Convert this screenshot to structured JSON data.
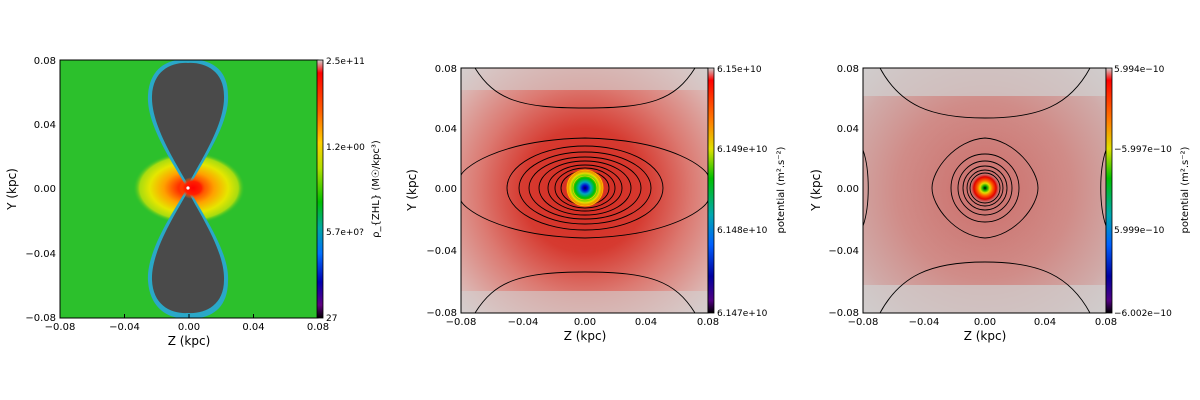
{
  "chart_data": [
    {
      "type": "heatmap",
      "panel": "density",
      "xlabel": "Z (kpc)",
      "ylabel": "Y (kpc)",
      "xlim": [
        -0.08,
        0.08
      ],
      "ylim": [
        -0.08,
        0.08
      ],
      "xticks": [
        "−0.08",
        "−0.04",
        "0.00",
        "0.04",
        "0.08"
      ],
      "yticks": [
        "0.08",
        "0.04",
        "0.00",
        "−0.04",
        "−0.08"
      ],
      "colorbar": {
        "label": "ρ_{ZHL} (M☉/kpc³)",
        "ticks": [
          "2.5e+11",
          "1.2e+00",
          "5.7e+0?",
          "27"
        ],
        "colormap": "nipy_spectral"
      },
      "features": {
        "background_color": "#2cc02c",
        "lobes_color": "#4a4a4a",
        "center_peak": "red-yellow core with horizontal extent"
      }
    },
    {
      "type": "heatmap",
      "panel": "potential",
      "xlabel": "Z (kpc)",
      "ylabel": "Y (kpc)",
      "xlim": [
        -0.08,
        0.08
      ],
      "ylim": [
        -0.08,
        0.08
      ],
      "xticks": [
        "−0.08",
        "−0.04",
        "0.00",
        "0.04",
        "0.08"
      ],
      "yticks": [
        "0.08",
        "0.04",
        "0.00",
        "−0.04",
        "−0.08"
      ],
      "colorbar": {
        "label": "potential (m².s⁻²)",
        "ticks": [
          "6.15e+10",
          "6.149e+10",
          "6.148e+10",
          "6.147e+10"
        ],
        "colormap": "nipy_spectral"
      },
      "contours": "closed ellipses around center, saddle-shaped outer contours"
    },
    {
      "type": "heatmap",
      "panel": "potential",
      "xlabel": "Z (kpc)",
      "ylabel": "Y (kpc)",
      "xlim": [
        -0.08,
        0.08
      ],
      "ylim": [
        -0.08,
        0.08
      ],
      "xticks": [
        "−0.08",
        "−0.04",
        "0.00",
        "0.04",
        "0.08"
      ],
      "yticks": [
        "0.08",
        "0.04",
        "0.00",
        "−0.04",
        "−0.08"
      ],
      "colorbar": {
        "label": "potential (m².s⁻²)",
        "ticks": [
          "5.994e−10",
          "−5.997e−10",
          "5.999e−10",
          "−6.002e−10"
        ],
        "colormap": "nipy_spectral"
      },
      "contours": "concentric circles around center, saddle-shaped outer contours"
    }
  ]
}
